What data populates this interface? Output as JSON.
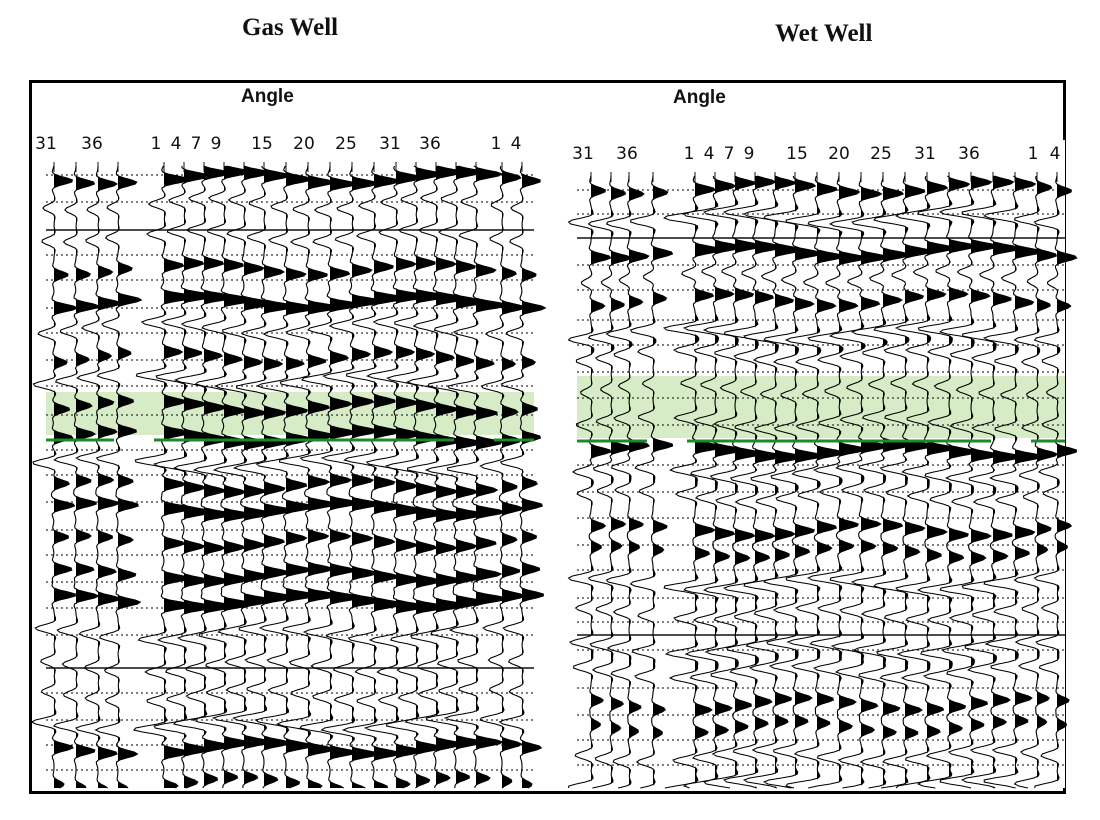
{
  "titles": {
    "left": "Gas Well",
    "right": "Wet Well"
  },
  "panels": [
    {
      "id": "gas",
      "angle_label": "Angle",
      "angle_ticks": [
        "31",
        "36",
        "1",
        "4",
        "7",
        "9",
        "15",
        "20",
        "25",
        "31",
        "36",
        "1",
        "4"
      ],
      "highlight_color": "#d6ecc7",
      "horizon_color": "#1d8a2a"
    },
    {
      "id": "wet",
      "angle_label": "Angle",
      "angle_ticks": [
        "31",
        "36",
        "1",
        "4",
        "7",
        "9",
        "15",
        "20",
        "25",
        "31",
        "36",
        "1",
        "4"
      ],
      "highlight_color": "#d6ecc7",
      "horizon_color": "#1d8a2a"
    }
  ],
  "colors": {
    "trace_fill": "#000000",
    "trace_line": "#000000",
    "frame": "#000000",
    "background": "#ffffff"
  }
}
